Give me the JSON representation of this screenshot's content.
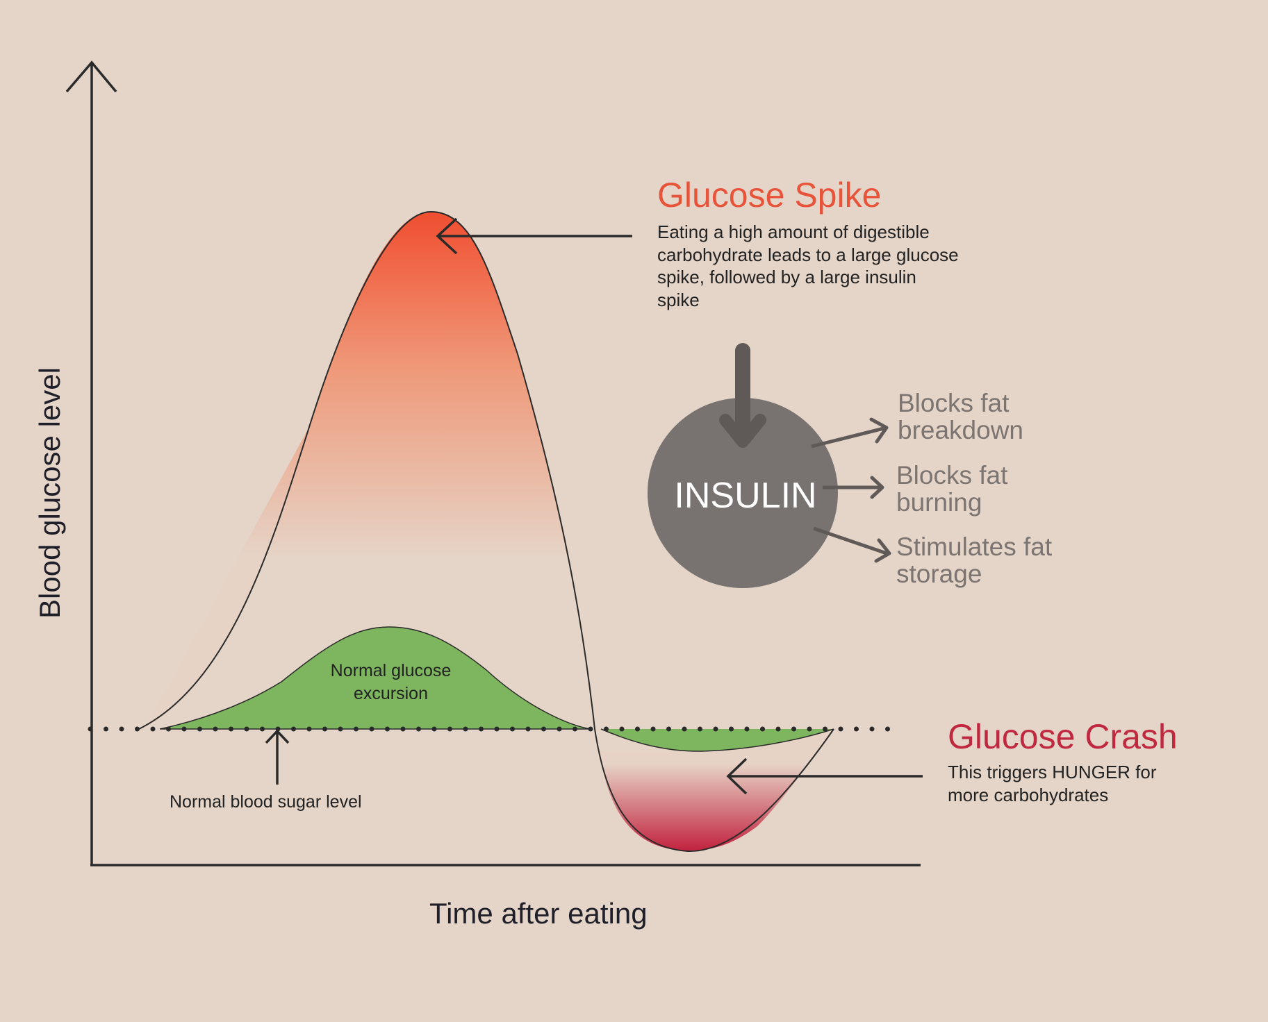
{
  "spike": {
    "title": "Glucose Spike",
    "description": "Eating a high amount of digestible carbohydrate leads to a large glucose spike, followed by a large insulin spike",
    "color": "#e8543a"
  },
  "crash": {
    "title": "Glucose Crash",
    "description": "This triggers HUNGER for more carbohydrates",
    "color": "#c0283f"
  },
  "normal": {
    "excursion_label": "Normal glucose excursion",
    "baseline_label": "Normal blood sugar level",
    "color": "#7db65e"
  },
  "axes": {
    "x_label": "Time after eating",
    "y_label": "Blood glucose level"
  },
  "insulin": {
    "label": "INSULIN",
    "color": "#787370",
    "effects": [
      {
        "label": "Blocks fat breakdown"
      },
      {
        "label": "Blocks fat burning"
      },
      {
        "label": "Stimulates fat storage"
      }
    ]
  },
  "background_color": "#e5d5c8"
}
